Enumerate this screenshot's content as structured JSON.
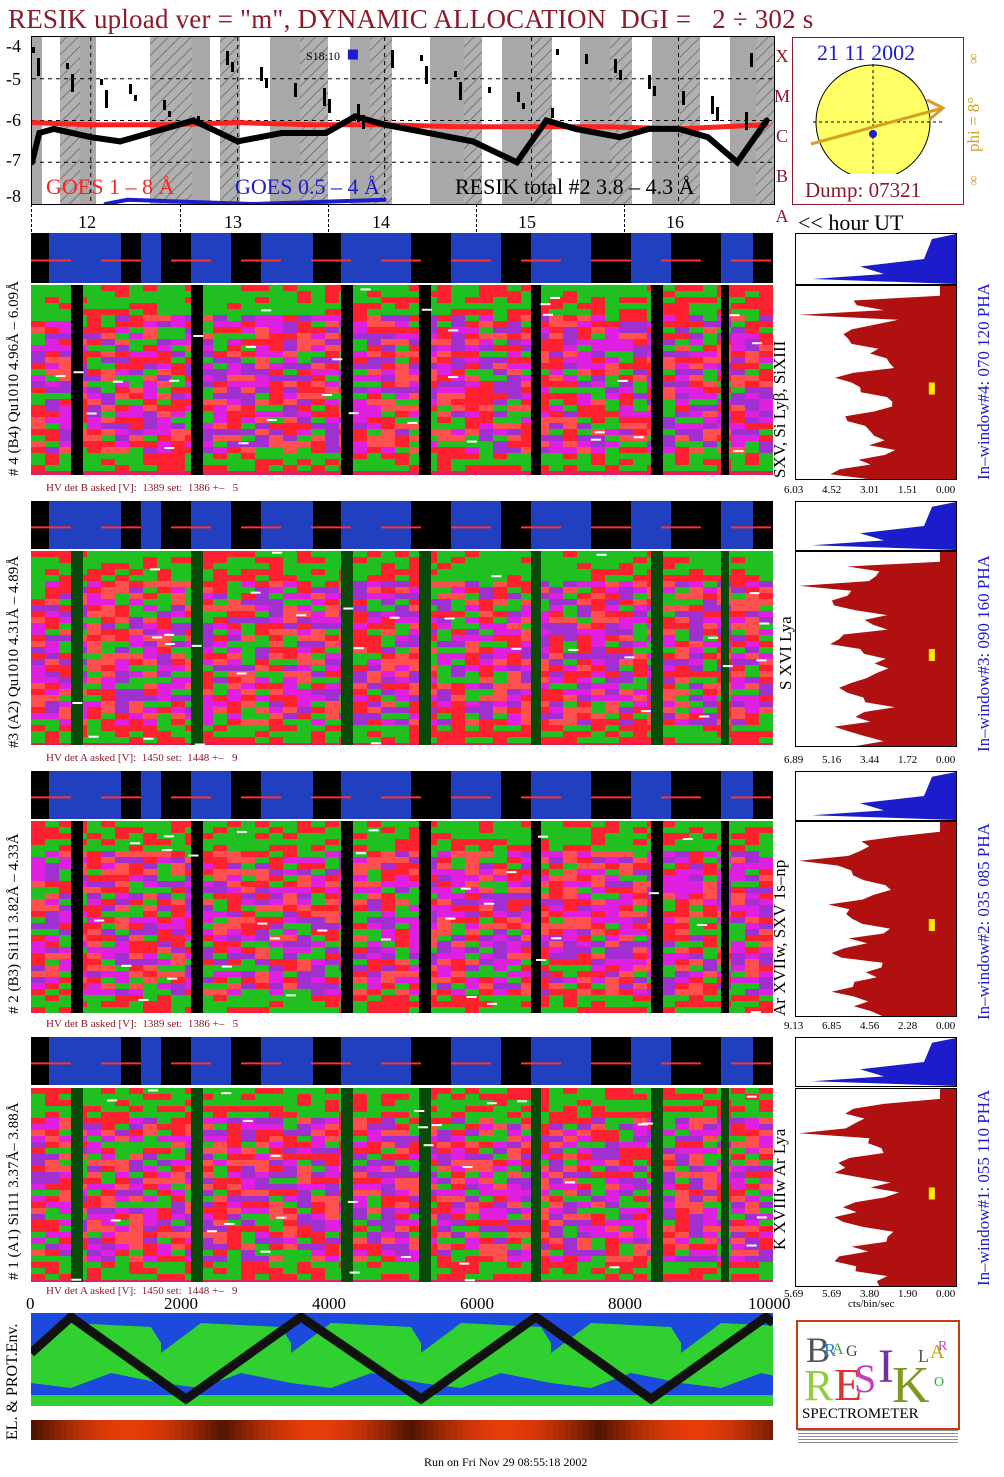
{
  "title": "RESIK upload ver = \"m\", DYNAMIC ALLOCATION  DGI =   2 ÷ 302 s",
  "goes": {
    "y_ticks": [
      "-4",
      "-5",
      "-6",
      "-7",
      "-8"
    ],
    "class_letters": [
      "X",
      "M",
      "C",
      "B",
      "A"
    ],
    "marker": "S18:10",
    "legend_goes_long": "GOES 1 – 8 Å",
    "legend_goes_short": "GOES 0.5 – 4 Å",
    "legend_resik": "RESIK total #2  3.8 – 4.3 Å",
    "colors": {
      "goes_long": "#ff2020",
      "goes_short": "#1c1ccc",
      "resik": "#000000"
    }
  },
  "date_box": {
    "date": "21 11 2002",
    "phi": "phi =  8°",
    "dump": "Dump: 07321",
    "infinity": "∞"
  },
  "hours": [
    "12",
    "13",
    "14",
    "15",
    "16"
  ],
  "hour_label": "<< hour UT",
  "channels": [
    {
      "id": "ch4",
      "left_label": "# 4 (B4) Qu1010 4.96Å – 6.09Å",
      "lines": "SXV, Si Lyβ, SiXIII",
      "hv": "HV det B asked [V]:  1389 set:  1386 +–   5",
      "right_label": "In–window#4:  070 120 PHA",
      "xticks": [
        "6.03",
        "4.52",
        "3.01",
        "1.51",
        "0.00"
      ]
    },
    {
      "id": "ch3",
      "left_label": "#3 (A2) Qu1010  4.31Å – 4.89Å",
      "lines": "S XVI Lya",
      "hv": "HV det A asked [V]:  1450 set:  1448 +–   9",
      "right_label": "In–window#3:  090 160 PHA",
      "xticks": [
        "6.89",
        "5.16",
        "3.44",
        "1.72",
        "0.00"
      ]
    },
    {
      "id": "ch2",
      "left_label": "# 2 (B3) Si111  3.82Å – 4.33Å",
      "lines": "Ar XVIIw,  SXV 1s–np",
      "hv": "HV det B asked [V]:  1389 set:  1386 +–   5",
      "right_label": "In–window#2:  035 085 PHA",
      "xticks": [
        "9.13",
        "6.85",
        "4.56",
        "2.28",
        "0.00"
      ]
    },
    {
      "id": "ch1",
      "left_label": "# 1 (A1) Si111  3.37Å– 3.88Å",
      "lines": "K XVIIIw  Ar Lya",
      "hv": "HV det A asked [V]:  1450 set:  1448 +–   9",
      "right_label": "In–window#1:  055 110 PHA",
      "xticks": [
        "5.69",
        "5.69",
        "3.80",
        "1.90",
        "0.00"
      ]
    }
  ],
  "x_axis": {
    "ticks": [
      "0",
      "2000",
      "4000",
      "6000",
      "8000",
      "10000"
    ],
    "right_unit": "cts/bin/sec"
  },
  "env_label": "EL. & PROT.Env.",
  "logo": {
    "letters": "BRAGG RESIK SOLAR",
    "word": "SPECTROMETER"
  },
  "footer": "Run on Fri Nov 29 08:55:18 2002",
  "chart_data": {
    "type": "line",
    "title": "RESIK upload ver = \"m\", DYNAMIC ALLOCATION  DGI =   2 ÷ 302 s",
    "xlabel": "hour UT",
    "ylabel": "",
    "x_range": [
      11.6,
      16.65
    ],
    "ylim": [
      -8,
      -4
    ],
    "series": [
      {
        "name": "GOES 1 – 8 Å",
        "color": "#ff2020",
        "x": [
          11.6,
          12.0,
          12.5,
          13.0,
          13.5,
          14.0,
          14.5,
          15.0,
          15.5,
          16.0,
          16.6
        ],
        "y": [
          -6.05,
          -6.1,
          -6.1,
          -6.05,
          -6.1,
          -6.1,
          -6.15,
          -6.15,
          -6.15,
          -6.2,
          -6.1
        ]
      },
      {
        "name": "RESIK total #2  3.8 – 4.3 Å",
        "color": "#000000",
        "x": [
          11.6,
          11.65,
          11.75,
          12.0,
          12.2,
          12.4,
          12.7,
          13.0,
          13.3,
          13.6,
          13.8,
          14.0,
          14.3,
          14.6,
          14.9,
          15.1,
          15.3,
          15.6,
          15.8,
          16.0,
          16.2,
          16.4,
          16.6
        ],
        "y": [
          -7.0,
          -6.3,
          -6.2,
          -6.4,
          -6.5,
          -6.3,
          -6.0,
          -6.5,
          -6.3,
          -6.3,
          -5.9,
          -6.1,
          -6.3,
          -6.5,
          -7.0,
          -6.0,
          -6.2,
          -6.4,
          -6.2,
          -6.2,
          -6.4,
          -7.0,
          -6.0
        ]
      },
      {
        "name": "GOES 0.5 – 4 Å",
        "color": "#1c1ccc",
        "x": [
          12.1,
          12.25,
          13.1,
          14.0
        ],
        "y": [
          -8.0,
          -7.9,
          -8.0,
          -7.9
        ]
      }
    ]
  }
}
